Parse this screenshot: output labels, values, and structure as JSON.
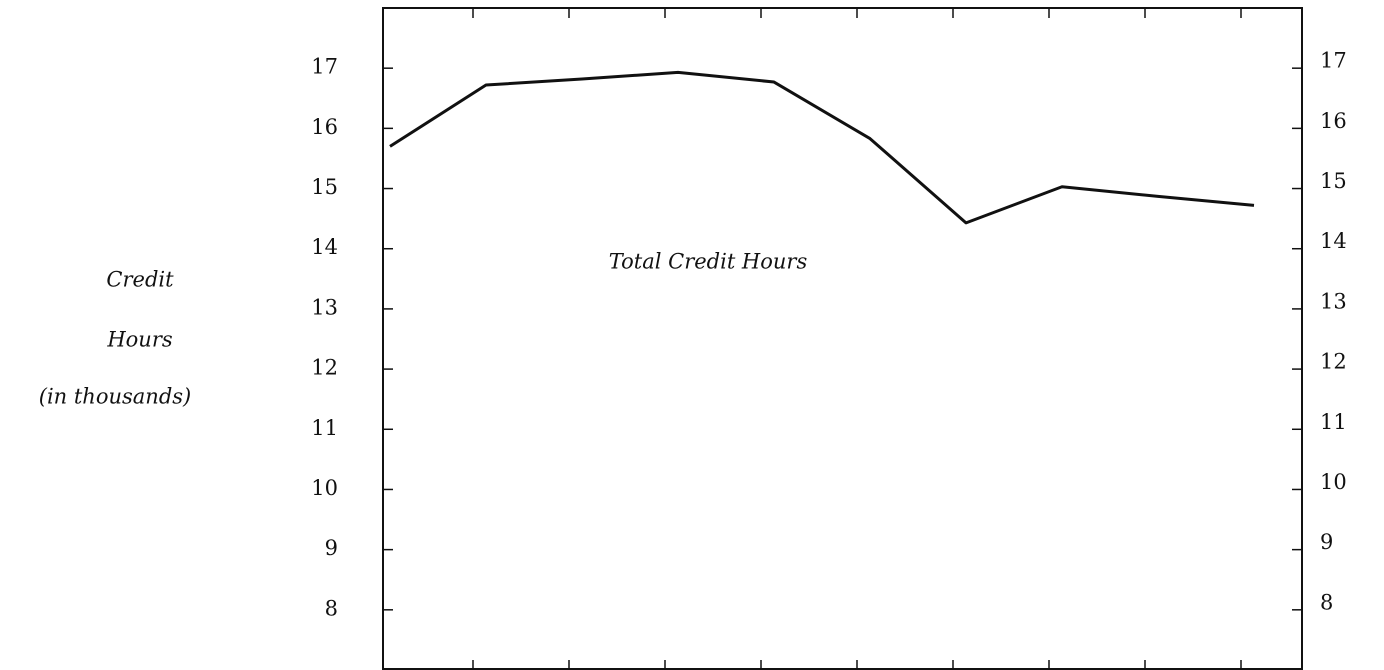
{
  "chart_data": {
    "type": "line",
    "annotation": "Total Credit Hours",
    "ylabel": [
      "Credit",
      "Hours",
      "(in thousands)"
    ],
    "categories": [
      null,
      null,
      null,
      null,
      null,
      null,
      null,
      null,
      null,
      null
    ],
    "series": [
      {
        "name": "Total Credit Hours",
        "color": "#111111",
        "values": [
          15.7,
          16.72,
          16.82,
          16.93,
          16.77,
          15.83,
          14.43,
          15.03,
          14.87,
          14.72
        ]
      }
    ],
    "ylim": [
      7,
      18
    ],
    "yticks": [
      8,
      9,
      10,
      11,
      12,
      13,
      14,
      15,
      16,
      17
    ]
  }
}
